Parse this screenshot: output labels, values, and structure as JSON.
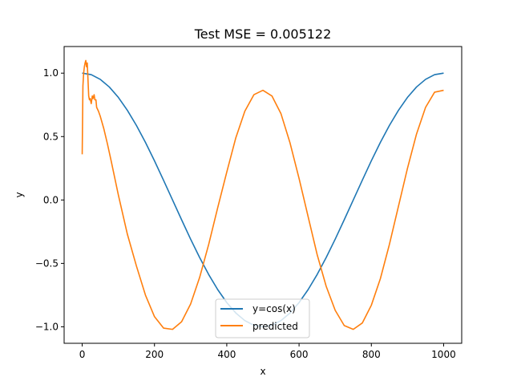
{
  "chart_data": {
    "type": "line",
    "title": "Test MSE = 0.005122",
    "xlabel": "x",
    "ylabel": "y",
    "xlim": [
      -50,
      1050
    ],
    "ylim": [
      -1.13,
      1.21
    ],
    "x_ticks": [
      0,
      200,
      400,
      600,
      800,
      1000
    ],
    "y_ticks": [
      -1.0,
      -0.5,
      0.0,
      0.5,
      1.0
    ],
    "x_tick_labels": [
      "0",
      "200",
      "400",
      "600",
      "800",
      "1000"
    ],
    "y_tick_labels": [
      "−1.0",
      "−0.5",
      "0.0",
      "0.5",
      "1.0"
    ],
    "grid": false,
    "legend_position": "lower-center",
    "series": [
      {
        "name": "y=cos(x)",
        "color": "#1f77b4",
        "x": [
          0,
          25,
          50,
          75,
          100,
          125,
          150,
          175,
          200,
          225,
          250,
          275,
          300,
          325,
          350,
          375,
          400,
          425,
          450,
          475,
          500,
          525,
          550,
          575,
          600,
          625,
          650,
          675,
          700,
          725,
          750,
          775,
          800,
          825,
          850,
          875,
          900,
          925,
          950,
          975,
          1000
        ],
        "y": [
          1.0,
          0.988,
          0.951,
          0.891,
          0.809,
          0.707,
          0.588,
          0.454,
          0.309,
          0.156,
          0.0,
          -0.156,
          -0.309,
          -0.454,
          -0.588,
          -0.707,
          -0.809,
          -0.891,
          -0.951,
          -0.988,
          -1.0,
          -0.988,
          -0.951,
          -0.891,
          -0.809,
          -0.707,
          -0.588,
          -0.454,
          -0.309,
          -0.156,
          0.0,
          0.156,
          0.309,
          0.454,
          0.588,
          0.707,
          0.809,
          0.891,
          0.951,
          0.988,
          1.0
        ]
      },
      {
        "name": "predicted",
        "color": "#ff7f0e",
        "x": [
          0,
          2,
          4,
          6,
          8,
          10,
          12,
          14,
          16,
          18,
          20,
          22,
          25,
          28,
          30,
          33,
          35,
          38,
          40,
          45,
          50,
          60,
          70,
          80,
          100,
          125,
          150,
          175,
          200,
          225,
          250,
          275,
          300,
          325,
          350,
          375,
          400,
          425,
          450,
          475,
          500,
          525,
          550,
          575,
          600,
          625,
          650,
          675,
          700,
          725,
          750,
          775,
          800,
          825,
          850,
          875,
          900,
          925,
          950,
          975,
          1000
        ],
        "y": [
          0.36,
          0.9,
          1.0,
          1.05,
          1.08,
          1.1,
          1.05,
          1.08,
          0.95,
          0.82,
          0.79,
          0.8,
          0.76,
          0.82,
          0.8,
          0.83,
          0.79,
          0.79,
          0.73,
          0.7,
          0.66,
          0.56,
          0.44,
          0.31,
          0.04,
          -0.27,
          -0.52,
          -0.75,
          -0.92,
          -1.01,
          -1.02,
          -0.96,
          -0.82,
          -0.61,
          -0.35,
          -0.06,
          0.22,
          0.49,
          0.7,
          0.83,
          0.865,
          0.82,
          0.68,
          0.45,
          0.17,
          -0.13,
          -0.43,
          -0.68,
          -0.87,
          -0.99,
          -1.02,
          -0.97,
          -0.83,
          -0.62,
          -0.35,
          -0.05,
          0.25,
          0.52,
          0.73,
          0.85,
          0.865
        ]
      }
    ]
  }
}
